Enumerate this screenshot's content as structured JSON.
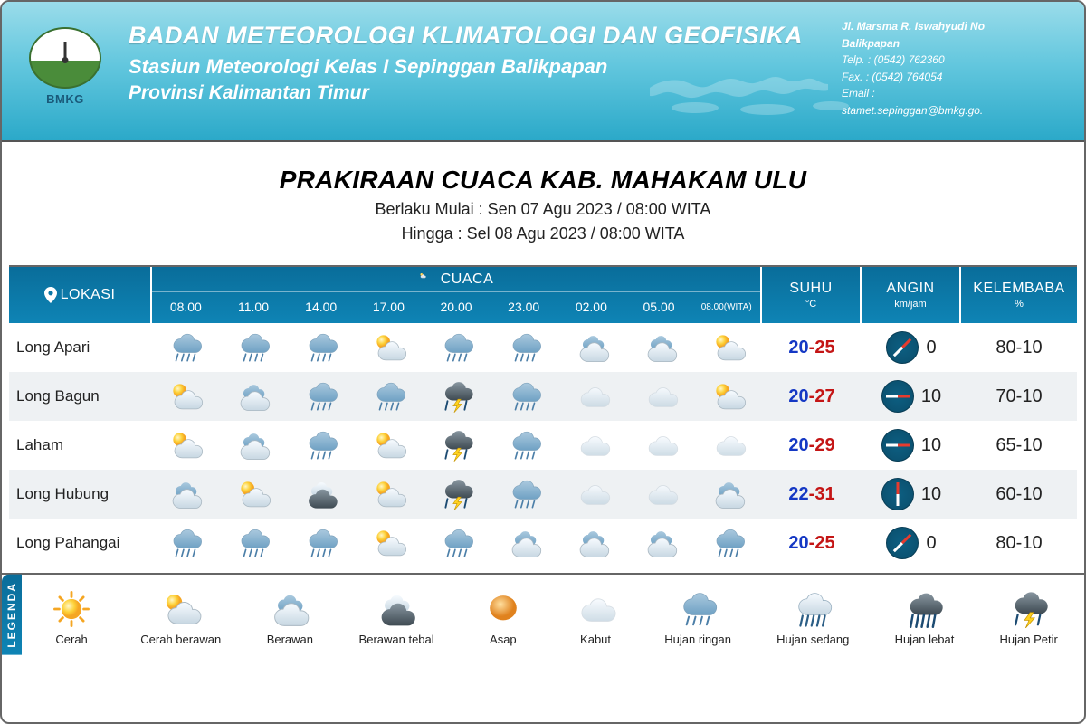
{
  "header": {
    "org_title": "BADAN METEOROLOGI KLIMATOLOGI DAN GEOFISIKA",
    "station": "Stasiun Meteorologi Kelas I Sepinggan Balikpapan",
    "province": "Provinsi Kalimantan Timur",
    "logo_label": "BMKG",
    "contact": {
      "addr": "Jl. Marsma R. Iswahyudi No",
      "city": "Balikpapan",
      "telp_label": "Telp.",
      "telp": ": (0542) 762360",
      "fax_label": "Fax.",
      "fax": ": (0542) 764054",
      "email_label": "Email :",
      "email": "stamet.sepinggan@bmkg.go."
    }
  },
  "title": {
    "main": "PRAKIRAAN CUACA KAB. MAHAKAM ULU",
    "valid_from": "Berlaku Mulai : Sen 07 Agu 2023 / 08:00 WITA",
    "valid_to": "Hingga : Sel 08 Agu 2023 / 08:00 WITA"
  },
  "columns": {
    "lokasi": "LOKASI",
    "cuaca": "CUACA",
    "suhu": "SUHU",
    "suhu_unit": "°C",
    "angin": "ANGIN",
    "angin_unit": "km/jam",
    "kelembaba": "KELEMBABA",
    "kelembaba_unit": "%"
  },
  "times": [
    "08.00",
    "11.00",
    "14.00",
    "17.00",
    "20.00",
    "23.00",
    "02.00",
    "05.00",
    "08.00(WITA)"
  ],
  "locations": [
    {
      "name": "Long Apari",
      "wx": [
        "rain-light",
        "rain-light",
        "rain-light",
        "sun-cloud",
        "rain-light",
        "rain-light",
        "cloudy",
        "cloudy",
        "sun-cloud"
      ],
      "temp_low": "20",
      "temp_high": "25",
      "wind_speed": "0",
      "wind_dir_deg": 45,
      "humidity": "80-10"
    },
    {
      "name": "Long Bagun",
      "wx": [
        "sun-cloud",
        "cloudy",
        "rain-light",
        "rain-light",
        "storm",
        "rain-light",
        "fog",
        "fog",
        "sun-cloud"
      ],
      "temp_low": "20",
      "temp_high": "27",
      "wind_speed": "10",
      "wind_dir_deg": 90,
      "humidity": "70-10"
    },
    {
      "name": "Laham",
      "wx": [
        "sun-cloud",
        "cloudy",
        "rain-light",
        "sun-cloud",
        "storm",
        "rain-light",
        "fog",
        "fog",
        "fog"
      ],
      "temp_low": "20",
      "temp_high": "29",
      "wind_speed": "10",
      "wind_dir_deg": 90,
      "humidity": "65-10"
    },
    {
      "name": "Long Hubung",
      "wx": [
        "cloudy",
        "sun-cloud",
        "cloud-dark",
        "sun-cloud",
        "storm",
        "rain-light",
        "fog",
        "fog",
        "cloudy"
      ],
      "temp_low": "22",
      "temp_high": "31",
      "wind_speed": "10",
      "wind_dir_deg": 0,
      "humidity": "60-10"
    },
    {
      "name": "Long Pahangai",
      "wx": [
        "rain-light",
        "rain-light",
        "rain-light",
        "sun-cloud",
        "rain-light",
        "cloudy",
        "cloudy",
        "cloudy",
        "rain-light"
      ],
      "temp_low": "20",
      "temp_high": "25",
      "wind_speed": "0",
      "wind_dir_deg": 45,
      "humidity": "80-10"
    }
  ],
  "legend_title": "LEGENDA",
  "legend": [
    {
      "icon": "clear",
      "label": "Cerah"
    },
    {
      "icon": "sun-cloud",
      "label": "Cerah berawan"
    },
    {
      "icon": "cloudy",
      "label": "Berawan"
    },
    {
      "icon": "cloud-dark",
      "label": "Berawan tebal"
    },
    {
      "icon": "haze",
      "label": "Asap"
    },
    {
      "icon": "fog",
      "label": "Kabut"
    },
    {
      "icon": "rain-light",
      "label": "Hujan ringan"
    },
    {
      "icon": "rain-med",
      "label": "Hujan sedang"
    },
    {
      "icon": "rain-heavy",
      "label": "Hujan lebat"
    },
    {
      "icon": "storm",
      "label": "Hujan Petir"
    }
  ],
  "colors": {
    "banner_top": "#9adcea",
    "banner_bottom": "#2ba9c9",
    "table_header": "#0a6d9a",
    "row_alt": "#eef1f3",
    "temp_low": "#1538c4",
    "temp_high": "#c41515"
  }
}
